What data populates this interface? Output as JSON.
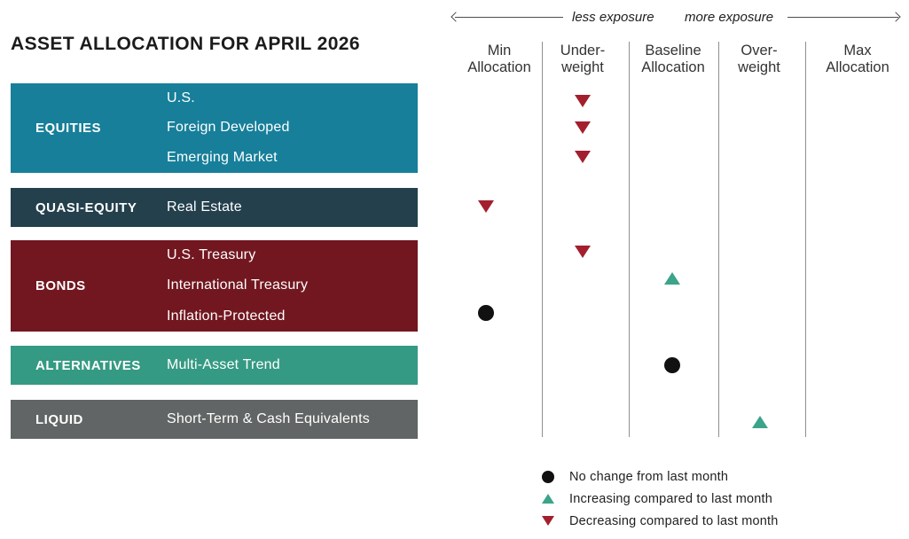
{
  "title": "ASSET ALLOCATION FOR APRIL 2026",
  "axis_arrows": {
    "left_label": "less exposure",
    "right_label": "more exposure"
  },
  "column_headers": [
    "Min\nAllocation",
    "Under-\nweight",
    "Baseline\nAllocation",
    "Over-\nweight",
    "Max\nAllocation"
  ],
  "chart_data": {
    "type": "table",
    "title": "ASSET ALLOCATION FOR APRIL 2026",
    "columns": [
      "Min Allocation",
      "Under-weight",
      "Baseline Allocation",
      "Over-weight",
      "Max Allocation"
    ],
    "categories": [
      {
        "name": "EQUITIES",
        "color": "#177f9a",
        "assets": [
          "U.S.",
          "Foreign Developed",
          "Emerging Market"
        ]
      },
      {
        "name": "QUASI-EQUITY",
        "color": "#24404d",
        "assets": [
          "Real Estate"
        ]
      },
      {
        "name": "BONDS",
        "color": "#721720",
        "assets": [
          "U.S. Treasury",
          "International Treasury",
          "Inflation-Protected"
        ]
      },
      {
        "name": "ALTERNATIVES",
        "color": "#359a83",
        "assets": [
          "Multi-Asset Trend"
        ]
      },
      {
        "name": "LIQUID",
        "color": "#626565",
        "assets": [
          "Short-Term & Cash Equivalents"
        ]
      }
    ],
    "allocations": [
      {
        "asset": "U.S.",
        "category": "EQUITIES",
        "allocation": "Under-weight",
        "trend": "decreasing"
      },
      {
        "asset": "Foreign Developed",
        "category": "EQUITIES",
        "allocation": "Under-weight",
        "trend": "decreasing"
      },
      {
        "asset": "Emerging Market",
        "category": "EQUITIES",
        "allocation": "Under-weight",
        "trend": "decreasing"
      },
      {
        "asset": "Real Estate",
        "category": "QUASI-EQUITY",
        "allocation": "Min Allocation",
        "trend": "decreasing"
      },
      {
        "asset": "U.S. Treasury",
        "category": "BONDS",
        "allocation": "Under-weight",
        "trend": "decreasing"
      },
      {
        "asset": "International Treasury",
        "category": "BONDS",
        "allocation": "Baseline Allocation",
        "trend": "increasing"
      },
      {
        "asset": "Inflation-Protected",
        "category": "BONDS",
        "allocation": "Min Allocation",
        "trend": "no-change"
      },
      {
        "asset": "Multi-Asset Trend",
        "category": "ALTERNATIVES",
        "allocation": "Baseline Allocation",
        "trend": "no-change"
      },
      {
        "asset": "Short-Term & Cash Equivalents",
        "category": "LIQUID",
        "allocation": "Over-weight",
        "trend": "increasing"
      }
    ]
  },
  "legend": [
    {
      "trend": "no-change",
      "label": "No change from last month"
    },
    {
      "trend": "increasing",
      "label": "Increasing compared to last month"
    },
    {
      "trend": "decreasing",
      "label": "Decreasing compared to last month"
    }
  ],
  "colors": {
    "decreasing_marker": "#a31f2d",
    "increasing_marker": "#3ba48b",
    "no_change_marker": "#111111",
    "grid_line": "#8f8f8f"
  }
}
